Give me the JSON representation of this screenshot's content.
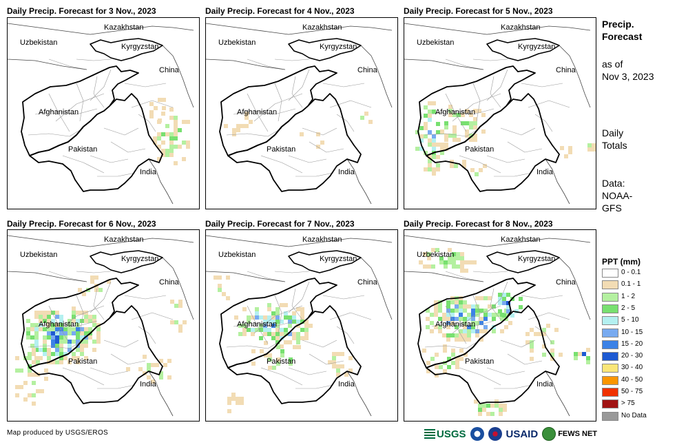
{
  "panels": [
    {
      "title": "Daily Precip. Forecast for 3 Nov., 2023",
      "rain": 0
    },
    {
      "title": "Daily Precip. Forecast for 4 Nov., 2023",
      "rain": 1
    },
    {
      "title": "Daily Precip. Forecast for 5 Nov., 2023",
      "rain": 2
    },
    {
      "title": "Daily Precip. Forecast for 6 Nov., 2023",
      "rain": 3
    },
    {
      "title": "Daily Precip. Forecast for 7 Nov., 2023",
      "rain": 4
    },
    {
      "title": "Daily Precip. Forecast for 8 Nov., 2023",
      "rain": 5
    }
  ],
  "places": {
    "kazakhstan": "Kazakhstan",
    "uzbekistan": "Uzbekistan",
    "kyrgyzstan": "Kyrgyzstan",
    "china": "China",
    "afghanistan": "Afghanistan",
    "pakistan": "Pakistan",
    "india": "India"
  },
  "side": {
    "line1": "Precip.",
    "line2": "Forecast",
    "asof1": "as of",
    "asof2": "Nov 3, 2023",
    "daily1": "Daily",
    "daily2": "Totals",
    "data1": "Data:",
    "data2": "NOAA-",
    "data3": "GFS"
  },
  "legend": {
    "title": "PPT (mm)",
    "items": [
      {
        "label": "0 - 0.1",
        "color": "#ffffff"
      },
      {
        "label": "0.1 - 1",
        "color": "#f2dcb4"
      },
      {
        "label": "1 - 2",
        "color": "#b4f0a0"
      },
      {
        "label": "2 - 5",
        "color": "#78e070"
      },
      {
        "label": "5 - 10",
        "color": "#b4f0f0"
      },
      {
        "label": "10 - 15",
        "color": "#78aaf0"
      },
      {
        "label": "15 - 20",
        "color": "#3c82e6"
      },
      {
        "label": "20 - 30",
        "color": "#1e5ad2"
      },
      {
        "label": "30 - 40",
        "color": "#fae678"
      },
      {
        "label": "40 - 50",
        "color": "#fa9600"
      },
      {
        "label": "50 - 75",
        "color": "#f03200"
      },
      {
        "label": "> 75",
        "color": "#a01414"
      },
      {
        "label": "No Data",
        "color": "#999999"
      }
    ]
  },
  "footer": "Map produced by USGS/EROS",
  "logos": {
    "usgs": "USGS",
    "usaid": "USAID",
    "fews": "FEWS NET"
  }
}
